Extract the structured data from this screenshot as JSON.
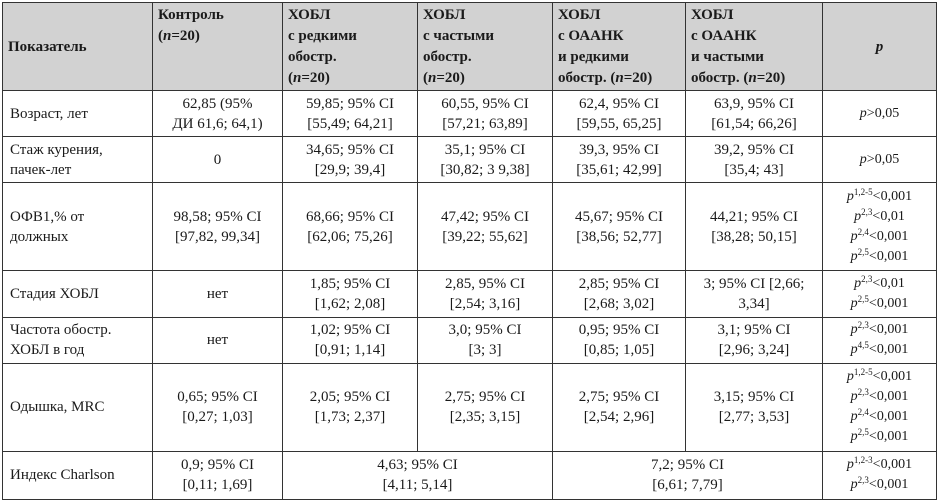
{
  "headers": [
    {
      "lines": [
        "Показатель"
      ]
    },
    {
      "lines": [
        "Контроль",
        "(n=20)"
      ]
    },
    {
      "lines": [
        "ХОБЛ",
        "с редкими",
        "обостр.",
        "(n=20)"
      ]
    },
    {
      "lines": [
        "ХОБЛ",
        "с частыми",
        "обостр.",
        "(n=20)"
      ]
    },
    {
      "lines": [
        "ХОБЛ",
        "с ОААНК",
        "и редкими",
        "обостр. (n=20)"
      ]
    },
    {
      "lines": [
        "ХОБЛ",
        "с ОААНК",
        "и частыми",
        "обостр. (n=20)"
      ]
    },
    {
      "lines": [
        "p"
      ]
    }
  ],
  "rows": [
    {
      "label": [
        "Возраст, лет"
      ],
      "cells": [
        [
          "62,85 (95%",
          "ДИ 61,6; 64,1)"
        ],
        [
          "59,85; 95% CI",
          "[55,49; 64,21]"
        ],
        [
          "60,55, 95% CI",
          "[57,21; 63,89]"
        ],
        [
          "62,4, 95% CI",
          "[59,55, 65,25]"
        ],
        [
          "63,9, 95% CI",
          "[61,54; 66,26]"
        ]
      ],
      "p": [
        {
          "pre": "p",
          "sup": "",
          "post": ">0,05"
        }
      ]
    },
    {
      "label": [
        "Стаж курения,",
        "пачек-лет"
      ],
      "cells": [
        [
          "0"
        ],
        [
          "34,65; 95% CI",
          "[29,9; 39,4]"
        ],
        [
          "35,1; 95% CI",
          "[30,82; 3 9,38]"
        ],
        [
          "39,3, 95% CI",
          "[35,61; 42,99]"
        ],
        [
          "39,2, 95% CI",
          "[35,4; 43]"
        ]
      ],
      "p": [
        {
          "pre": "p",
          "sup": "",
          "post": ">0,05"
        }
      ]
    },
    {
      "label": [
        "ОФВ1,% от",
        "должных"
      ],
      "cells": [
        [
          "98,58; 95% CI",
          "[97,82, 99,34]"
        ],
        [
          "68,66; 95% CI",
          "[62,06; 75,26]"
        ],
        [
          "47,42; 95% CI",
          "[39,22; 55,62]"
        ],
        [
          "45,67; 95% CI",
          "[38,56; 52,77]"
        ],
        [
          "44,21; 95% CI",
          "[38,28; 50,15]"
        ]
      ],
      "p": [
        {
          "pre": "p",
          "sup": "1,2-5",
          "post": "<0,001"
        },
        {
          "pre": "p",
          "sup": "2,3",
          "post": "<0,01"
        },
        {
          "pre": "p",
          "sup": "2,4",
          "post": "<0,001"
        },
        {
          "pre": "p",
          "sup": "2,5",
          "post": "<0,001"
        }
      ]
    },
    {
      "label": [
        "Стадия ХОБЛ"
      ],
      "cells": [
        [
          "нет"
        ],
        [
          "1,85; 95% CI",
          "[1,62; 2,08]"
        ],
        [
          "2,85, 95% CI",
          "[2,54; 3,16]"
        ],
        [
          "2,85; 95% CI",
          "[2,68; 3,02]"
        ],
        [
          "3; 95% CI [2,66;",
          "3,34]"
        ]
      ],
      "p": [
        {
          "pre": "p",
          "sup": "2,3",
          "post": "<0,01"
        },
        {
          "pre": "p",
          "sup": "2,5",
          "post": "<0,001"
        }
      ]
    },
    {
      "label": [
        "Частота обостр.",
        "ХОБЛ в год"
      ],
      "cells": [
        [
          "нет"
        ],
        [
          "1,02; 95% CI",
          "[0,91; 1,14]"
        ],
        [
          "3,0; 95% CI",
          "[3; 3]"
        ],
        [
          "0,95; 95% CI",
          "[0,85; 1,05]"
        ],
        [
          "3,1; 95% CI",
          "[2,96; 3,24]"
        ]
      ],
      "p": [
        {
          "pre": "p",
          "sup": "2,3",
          "post": "<0,001"
        },
        {
          "pre": "p",
          "sup": "4,5",
          "post": "<0,001"
        }
      ]
    },
    {
      "label": [
        "Одышка, MRC"
      ],
      "cells": [
        [
          "0,65; 95% CI",
          "[0,27; 1,03]"
        ],
        [
          "2,05; 95% CI",
          "[1,73; 2,37]"
        ],
        [
          "2,75; 95% CI",
          "[2,35; 3,15]"
        ],
        [
          "2,75; 95% CI",
          "[2,54; 2,96]"
        ],
        [
          "3,15; 95% CI",
          "[2,77; 3,53]"
        ]
      ],
      "p": [
        {
          "pre": "p",
          "sup": "1,2-5",
          "post": "<0,001"
        },
        {
          "pre": "p",
          "sup": "2,3",
          "post": "<0,001"
        },
        {
          "pre": "p",
          "sup": "2,4",
          "post": "<0,001"
        },
        {
          "pre": "p",
          "sup": "2,5",
          "post": "<0,001"
        }
      ]
    },
    {
      "label": [
        "Индекс Charlson"
      ],
      "cells": [
        [
          "0,9; 95% CI",
          "[0,11; 1,69]"
        ],
        [
          "4,63; 95% CI",
          "[4,11; 5,14]"
        ],
        [
          "7,2; 95% CI",
          "[6,61; 7,79]"
        ]
      ],
      "colspans": [
        1,
        2,
        2
      ],
      "p": [
        {
          "pre": "p",
          "sup": "1,2-3",
          "post": "<0,001"
        },
        {
          "pre": "p",
          "sup": "2,3",
          "post": "<0,001"
        }
      ]
    }
  ]
}
